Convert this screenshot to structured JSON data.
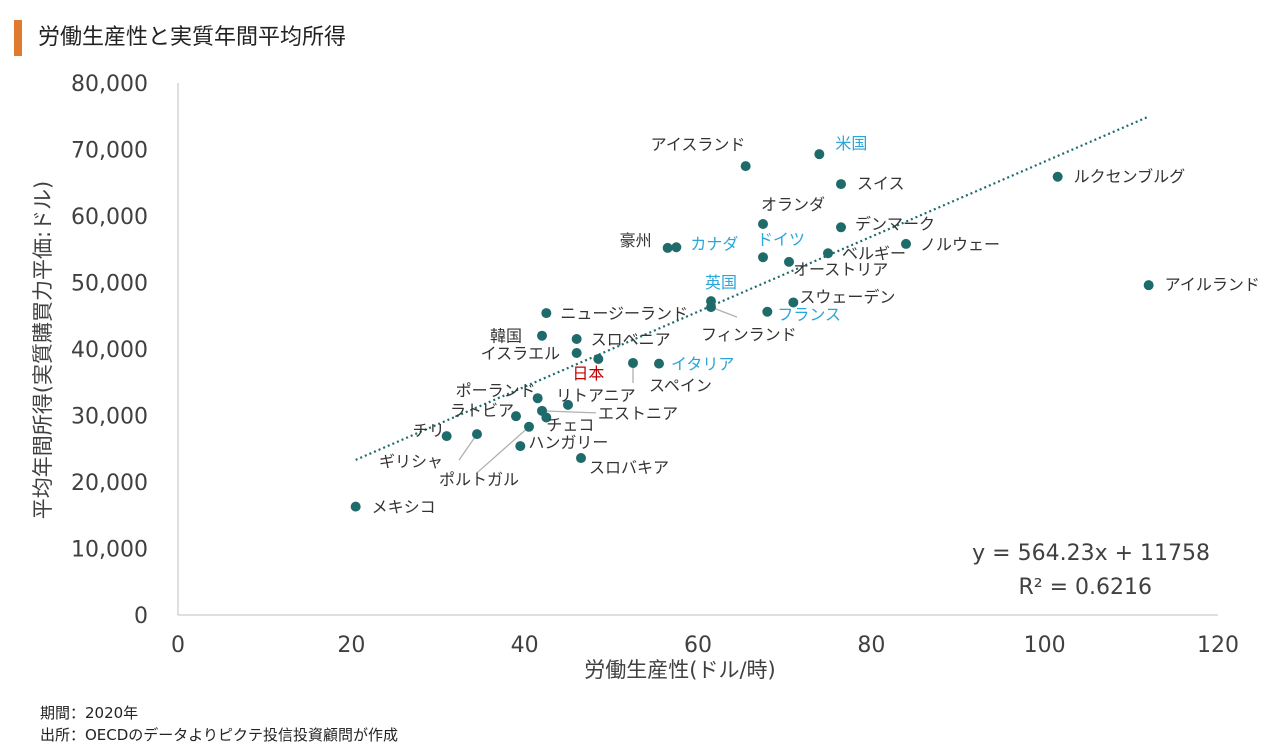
{
  "title": "労働生産性と実質年間平均所得",
  "footer": {
    "period": "期間：2020年",
    "source": "出所：OECDのデータよりピクテ投信投資顧問が作成"
  },
  "colors": {
    "point": "#1f6b6b",
    "highlight": "#2aa6d9",
    "japan": "#c00000",
    "trend": "#1f6b6b",
    "leader": "#b0b0b0",
    "accent": "#e07a2e"
  },
  "chart_data": {
    "type": "scatter",
    "title": "労働生産性と実質年間平均所得",
    "xlabel": "労働生産性(ドル/時)",
    "ylabel": "平均年間所得(実質購買力平価:ドル)",
    "xlim": [
      0,
      120
    ],
    "ylim": [
      0,
      80000
    ],
    "xticks": [
      "0",
      "20",
      "40",
      "60",
      "80",
      "100",
      "120"
    ],
    "yticks": [
      "0",
      "10,000",
      "20,000",
      "30,000",
      "40,000",
      "50,000",
      "60,000",
      "70,000",
      "80,000"
    ],
    "grid": false,
    "trendline": {
      "equation": "y = 564.23x + 11758",
      "r2": "R² = 0.6216",
      "x_range": [
        20.5,
        112
      ]
    },
    "points": [
      {
        "label": "アイスランド",
        "x": 65.5,
        "y": 67500,
        "style": "normal"
      },
      {
        "label": "米国",
        "x": 74,
        "y": 69300,
        "style": "highlight"
      },
      {
        "label": "スイス",
        "x": 76.5,
        "y": 64800,
        "style": "normal"
      },
      {
        "label": "ルクセンブルグ",
        "x": 101.5,
        "y": 65900,
        "style": "normal"
      },
      {
        "label": "オランダ",
        "x": 67.5,
        "y": 58800,
        "style": "normal"
      },
      {
        "label": "デンマーク",
        "x": 76.5,
        "y": 58300,
        "style": "normal"
      },
      {
        "label": "豪州",
        "x": 56.5,
        "y": 55200,
        "style": "normal"
      },
      {
        "label": "カナダ",
        "x": 57.5,
        "y": 55300,
        "style": "highlight"
      },
      {
        "label": "ドイツ",
        "x": 67.5,
        "y": 53800,
        "style": "highlight"
      },
      {
        "label": "ベルギー",
        "x": 75,
        "y": 54400,
        "style": "normal"
      },
      {
        "label": "ノルウェー",
        "x": 84,
        "y": 55800,
        "style": "normal"
      },
      {
        "label": "オーストリア",
        "x": 70.5,
        "y": 53100,
        "style": "normal"
      },
      {
        "label": "アイルランド",
        "x": 112,
        "y": 49600,
        "style": "normal"
      },
      {
        "label": "英国",
        "x": 61.5,
        "y": 47200,
        "style": "highlight"
      },
      {
        "label": "フィンランド",
        "x": 61.5,
        "y": 46300,
        "style": "normal"
      },
      {
        "label": "スウェーデン",
        "x": 71,
        "y": 47000,
        "style": "normal"
      },
      {
        "label": "フランス",
        "x": 68,
        "y": 45600,
        "style": "highlight"
      },
      {
        "label": "ニュージーランド",
        "x": 42.5,
        "y": 45400,
        "style": "normal"
      },
      {
        "label": "韓国",
        "x": 42,
        "y": 42000,
        "style": "normal"
      },
      {
        "label": "スロベニア",
        "x": 46,
        "y": 41500,
        "style": "normal"
      },
      {
        "label": "イスラエル",
        "x": 46,
        "y": 39400,
        "style": "normal"
      },
      {
        "label": "日本",
        "x": 48.5,
        "y": 38500,
        "style": "japan"
      },
      {
        "label": "スペイン",
        "x": 52.5,
        "y": 37900,
        "style": "normal"
      },
      {
        "label": "イタリア",
        "x": 55.5,
        "y": 37800,
        "style": "highlight"
      },
      {
        "label": "ポーランド",
        "x": 41.5,
        "y": 32600,
        "style": "normal"
      },
      {
        "label": "リトアニア",
        "x": 45,
        "y": 31600,
        "style": "normal"
      },
      {
        "label": "ラトビア",
        "x": 39,
        "y": 29900,
        "style": "normal"
      },
      {
        "label": "エストニア",
        "x": 42,
        "y": 30700,
        "style": "normal"
      },
      {
        "label": "チェコ",
        "x": 42.5,
        "y": 29700,
        "style": "normal"
      },
      {
        "label": "チリ",
        "x": 31,
        "y": 26900,
        "style": "normal"
      },
      {
        "label": "ギリシャ",
        "x": 34.5,
        "y": 27200,
        "style": "normal"
      },
      {
        "label": "ポルトガル",
        "x": 40.5,
        "y": 28300,
        "style": "normal"
      },
      {
        "label": "ハンガリー",
        "x": 39.5,
        "y": 25400,
        "style": "normal"
      },
      {
        "label": "スロバキア",
        "x": 46.5,
        "y": 23600,
        "style": "normal"
      },
      {
        "label": "メキシコ",
        "x": 20.5,
        "y": 16300,
        "style": "normal"
      }
    ]
  }
}
